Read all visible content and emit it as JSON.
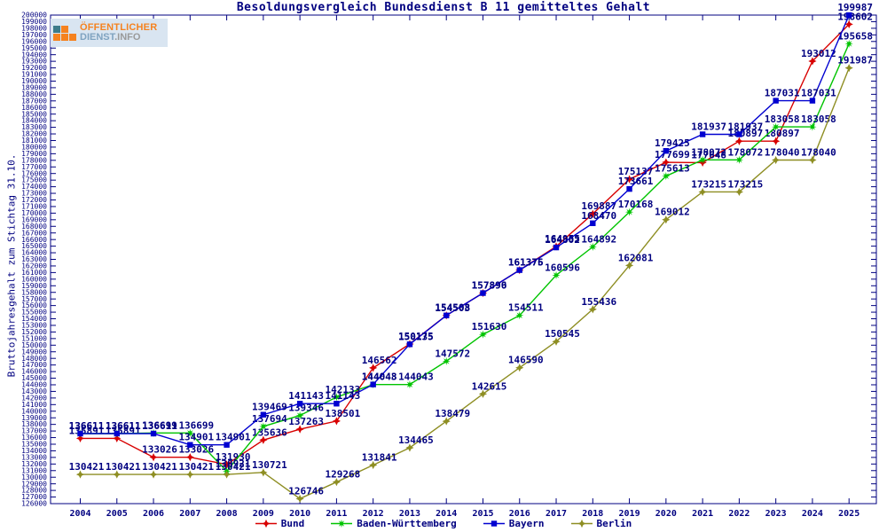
{
  "title": "Besoldungsvergleich Bundesdienst B 11 gemitteltes Gehalt",
  "logo": {
    "line1": "ÖFFENTLICHER",
    "dienst": "DIENST",
    "info": ".INFO",
    "orange": "#f5821f",
    "teal": "#3d7b8a",
    "background": "#d9e5f1"
  },
  "axis_color": "#000080",
  "chart_data": {
    "type": "line",
    "title": "Besoldungsvergleich Bundesdienst B 11 gemitteltes Gehalt",
    "ylabel": "Bruttojahresgehalt zum Stichtag 31.10.",
    "xlabel": "",
    "grid": false,
    "legend_position": "bottom",
    "ylim": [
      126000,
      200000
    ],
    "ytick_step": 1000,
    "x": [
      2004,
      2005,
      2006,
      2007,
      2008,
      2009,
      2010,
      2011,
      2012,
      2013,
      2014,
      2015,
      2016,
      2017,
      2018,
      2019,
      2020,
      2021,
      2022,
      2023,
      2024,
      2025
    ],
    "series": [
      {
        "name": "Bund",
        "color": "#d80000",
        "marker": "star4",
        "values": [
          135891,
          135891,
          133026,
          133026,
          131930,
          135636,
          137263,
          138501,
          146562,
          150175,
          154508,
          157896,
          161376,
          164955,
          169887,
          175137,
          177699,
          177648,
          180897,
          180897,
          193012,
          198602
        ]
      },
      {
        "name": "Baden-Württemberg",
        "color": "#00c400",
        "marker": "star8",
        "values": [
          136611,
          136611,
          136699,
          136699,
          130921,
          137694,
          139346,
          142133,
          144043,
          144043,
          147572,
          151630,
          154511,
          160596,
          164892,
          170168,
          175613,
          178072,
          178072,
          183058,
          183058,
          195658
        ]
      },
      {
        "name": "Bayern",
        "color": "#0000d0",
        "marker": "square",
        "values": [
          136611,
          136611,
          136611,
          134901,
          134901,
          139469,
          141143,
          141143,
          144048,
          150135,
          154503,
          157890,
          161375,
          164802,
          168470,
          173661,
          179425,
          181937,
          181937,
          187031,
          187031,
          199987
        ]
      },
      {
        "name": "Berlin",
        "color": "#8e8e23",
        "marker": "star4",
        "values": [
          130421,
          130421,
          130421,
          130421,
          130421,
          130721,
          126746,
          129268,
          131841,
          134465,
          138479,
          142615,
          146590,
          150545,
          155436,
          162081,
          169012,
          173215,
          173215,
          178040,
          178040,
          191987
        ]
      }
    ]
  }
}
